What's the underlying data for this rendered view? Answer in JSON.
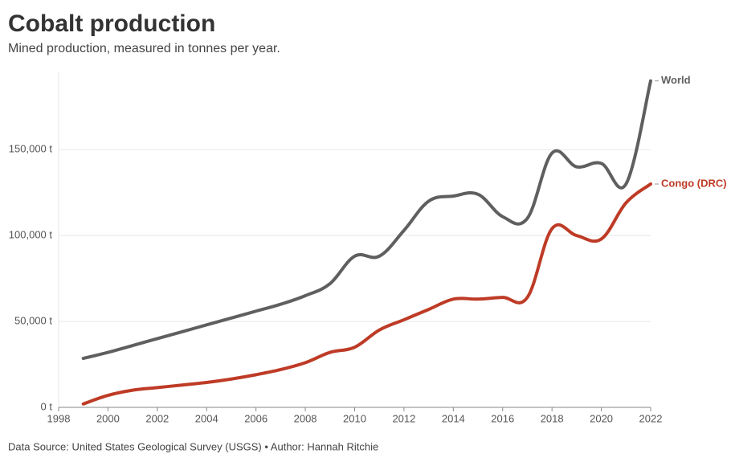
{
  "chart_data": {
    "type": "line",
    "title": "Cobalt production",
    "subtitle": "Mined production, measured in tonnes per year.",
    "source": "Data Source: United States Geological Survey (USGS) • Author: Hannah Ritchie",
    "x": [
      1999,
      2000,
      2001,
      2002,
      2003,
      2004,
      2005,
      2006,
      2007,
      2008,
      2009,
      2010,
      2011,
      2012,
      2013,
      2014,
      2015,
      2016,
      2017,
      2018,
      2019,
      2020,
      2021,
      2022
    ],
    "series": [
      {
        "name": "World",
        "color": "#5f5f5f",
        "values": [
          28500,
          32000,
          36000,
          40000,
          44000,
          48000,
          52000,
          56000,
          60000,
          65000,
          72000,
          88000,
          88000,
          103000,
          120000,
          123000,
          124000,
          111000,
          110000,
          148000,
          140000,
          142000,
          130000,
          190000
        ]
      },
      {
        "name": "Congo (DRC)",
        "color": "#be3b26",
        "values": [
          2000,
          7000,
          10000,
          11500,
          13000,
          14500,
          16500,
          19000,
          22000,
          26000,
          32000,
          35000,
          45000,
          51000,
          57000,
          63000,
          63000,
          64000,
          64000,
          104000,
          100000,
          98000,
          119000,
          130000
        ]
      }
    ],
    "xlim": [
      1998,
      2022
    ],
    "xticks": [
      1998,
      2000,
      2002,
      2004,
      2006,
      2008,
      2010,
      2012,
      2014,
      2016,
      2018,
      2020,
      2022
    ],
    "ylim": [
      0,
      195000
    ],
    "yticks": [
      {
        "value": 0,
        "label": "0 t"
      },
      {
        "value": 50000,
        "label": "50,000 t"
      },
      {
        "value": 100000,
        "label": "100,000 t"
      },
      {
        "value": 150000,
        "label": "150,000 t"
      }
    ],
    "grid": true
  }
}
